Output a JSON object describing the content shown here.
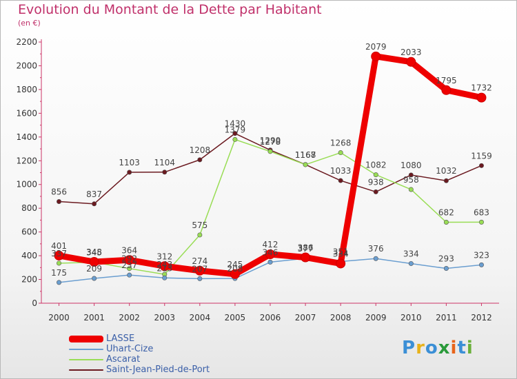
{
  "title": "Evolution du Montant de la Dette par Habitant",
  "subtitle": "(en €)",
  "logo": {
    "letters": [
      "P",
      "r",
      "o",
      "x",
      "i",
      "t",
      "i"
    ],
    "colors": [
      "#3b8fd6",
      "#e8b21a",
      "#3b8fd6",
      "#2a9a3a",
      "#e8641a",
      "#3b8fd6",
      "#6ab03a"
    ]
  },
  "chart_data": {
    "type": "line",
    "title": "Evolution du Montant de la Dette par Habitant",
    "ylabel": "(en €)",
    "xlabel": "",
    "x": [
      "2000",
      "2001",
      "2002",
      "2003",
      "2004",
      "2005",
      "2006",
      "2007",
      "2008",
      "2009",
      "2010",
      "2011",
      "2012"
    ],
    "ylim": [
      0,
      2200
    ],
    "yticks": [
      "0",
      "200",
      "400",
      "600",
      "800",
      "1000",
      "1200",
      "1400",
      "1600",
      "1800",
      "2000",
      "2200"
    ],
    "grid": false,
    "legend_position": "bottom-left",
    "series": [
      {
        "name": "LASSE",
        "color": "#ee0000",
        "values": [
          401,
          348,
          364,
          312,
          274,
          245,
          412,
          386,
          334,
          2079,
          2033,
          1795,
          1732
        ],
        "labels": [
          "401",
          "348",
          "364",
          "312",
          "274",
          "245",
          "412",
          "386",
          "334",
          "2079",
          "2033",
          "1795",
          "1732"
        ]
      },
      {
        "name": "Uhart-Cize",
        "color": "#6a9ed0",
        "values": [
          175,
          209,
          237,
          213,
          207,
          208,
          346,
          377,
          351,
          376,
          334,
          293,
          323
        ],
        "labels": [
          "175",
          "209",
          "237",
          "213",
          "207",
          "208",
          "346",
          "377",
          "351",
          "376",
          "334",
          "293",
          "323"
        ]
      },
      {
        "name": "Ascarat",
        "color": "#99dd55",
        "values": [
          337,
          345,
          292,
          243,
          575,
          1379,
          1278,
          1167,
          1268,
          1082,
          958,
          682,
          683
        ],
        "labels": [
          "337",
          "345",
          "292",
          "243",
          "575",
          "1379",
          "1278",
          "1167",
          "1268",
          "1082",
          "958",
          "682",
          "683"
        ]
      },
      {
        "name": "Saint-Jean-Pied-de-Port",
        "color": "#6b1a20",
        "values": [
          856,
          837,
          1103,
          1104,
          1208,
          1430,
          1290,
          1168,
          1033,
          938,
          1080,
          1032,
          1159
        ],
        "labels": [
          "856",
          "837",
          "1103",
          "1104",
          "1208",
          "1430",
          "1290",
          "1168",
          "1033",
          "938",
          "1080",
          "1032",
          "1159"
        ]
      }
    ]
  }
}
